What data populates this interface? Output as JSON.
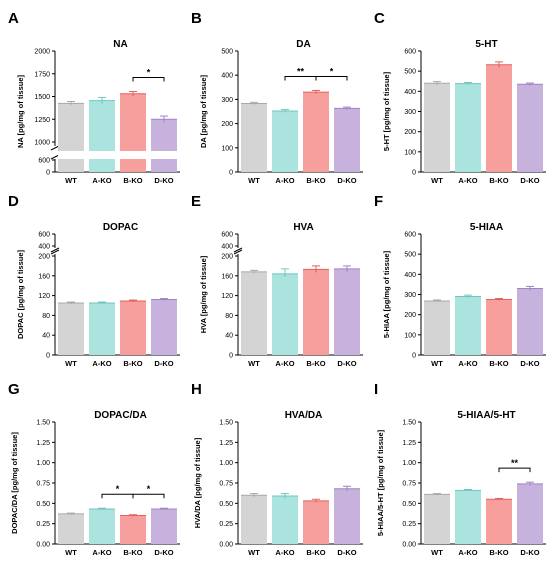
{
  "chart_data": [
    {
      "panel": "A",
      "type": "bar",
      "title": "NA",
      "ylabel": "NA [pg/mg of tissue]",
      "categories": [
        "WT",
        "A-KO",
        "B-KO",
        "D-KO"
      ],
      "values": [
        1425,
        1455,
        1530,
        1250
      ],
      "errors": [
        20,
        35,
        25,
        35
      ],
      "y_axis_break": true,
      "ylim_lower": [
        0,
        600
      ],
      "ylim_upper": [
        1000,
        2000
      ],
      "yticks_lower": [
        "0",
        "600"
      ],
      "yticks_upper": [
        "1000",
        "1250",
        "1500",
        "1750",
        "2000"
      ],
      "significance": [
        {
          "from": "B-KO",
          "to": "D-KO",
          "label": "*"
        }
      ]
    },
    {
      "panel": "B",
      "type": "bar",
      "title": "DA",
      "ylabel": "DA [pg/mg of tissue]",
      "categories": [
        "WT",
        "A-KO",
        "B-KO",
        "D-KO"
      ],
      "values": [
        283,
        252,
        330,
        263
      ],
      "errors": [
        5,
        6,
        7,
        5
      ],
      "ylim": [
        0,
        500
      ],
      "yticks": [
        "0",
        "100",
        "200",
        "300",
        "400",
        "500"
      ],
      "significance": [
        {
          "from": "A-KO",
          "to": "B-KO",
          "label": "**"
        },
        {
          "from": "B-KO",
          "to": "D-KO",
          "label": "*"
        }
      ]
    },
    {
      "panel": "C",
      "type": "bar",
      "title": "5-HT",
      "ylabel": "5-HT [pg/mg of tissue]",
      "categories": [
        "WT",
        "A-KO",
        "B-KO",
        "D-KO"
      ],
      "values": [
        440,
        438,
        532,
        435
      ],
      "errors": [
        8,
        6,
        14,
        6
      ],
      "ylim": [
        0,
        600
      ],
      "yticks": [
        "0",
        "100",
        "200",
        "300",
        "400",
        "500",
        "600"
      ],
      "significance": []
    },
    {
      "panel": "D",
      "type": "bar",
      "title": "DOPAC",
      "ylabel": "DOPAC [pg/mg of tissue]",
      "categories": [
        "WT",
        "A-KO",
        "B-KO",
        "D-KO"
      ],
      "values": [
        105,
        105,
        109,
        112
      ],
      "errors": [
        2,
        2,
        2,
        2
      ],
      "y_axis_break": true,
      "ylim": [
        0,
        200
      ],
      "yticks": [
        "0",
        "40",
        "80",
        "120",
        "160",
        "200"
      ],
      "yticks_above_break": [
        "400",
        "600"
      ],
      "significance": []
    },
    {
      "panel": "E",
      "type": "bar",
      "title": "HVA",
      "ylabel": "HVA [pg/mg of tissue]",
      "categories": [
        "WT",
        "A-KO",
        "B-KO",
        "D-KO"
      ],
      "values": [
        168,
        164,
        173,
        174
      ],
      "errors": [
        3,
        10,
        7,
        6
      ],
      "y_axis_break": true,
      "ylim": [
        0,
        200
      ],
      "yticks": [
        "0",
        "40",
        "80",
        "120",
        "160",
        "200"
      ],
      "yticks_above_break": [
        "400",
        "600"
      ],
      "significance": []
    },
    {
      "panel": "F",
      "type": "bar",
      "title": "5-HIAA",
      "ylabel": "5-HIAA [pg/mg of tissue]",
      "categories": [
        "WT",
        "A-KO",
        "B-KO",
        "D-KO"
      ],
      "values": [
        268,
        290,
        275,
        330
      ],
      "errors": [
        5,
        7,
        5,
        10
      ],
      "ylim": [
        0,
        600
      ],
      "yticks": [
        "0",
        "100",
        "200",
        "300",
        "400",
        "500",
        "600"
      ],
      "significance": []
    },
    {
      "panel": "G",
      "type": "bar",
      "title": "DOPAC/DA",
      "ylabel": "DOPAC/DA [pg/mg of tissue]",
      "categories": [
        "WT",
        "A-KO",
        "B-KO",
        "D-KO"
      ],
      "values": [
        0.37,
        0.43,
        0.35,
        0.43
      ],
      "errors": [
        0.01,
        0.01,
        0.01,
        0.01
      ],
      "ylim": [
        0,
        1.5
      ],
      "yticks": [
        "0.00",
        "0.25",
        "0.50",
        "0.75",
        "1.00",
        "1.25",
        "1.50"
      ],
      "significance": [
        {
          "from": "A-KO",
          "to": "B-KO",
          "label": "*"
        },
        {
          "from": "B-KO",
          "to": "D-KO",
          "label": "*"
        }
      ]
    },
    {
      "panel": "H",
      "type": "bar",
      "title": "HVA/DA",
      "ylabel": "HVA/DA [pg/mg of tissue]",
      "categories": [
        "WT",
        "A-KO",
        "B-KO",
        "D-KO"
      ],
      "values": [
        0.6,
        0.59,
        0.53,
        0.68
      ],
      "errors": [
        0.02,
        0.03,
        0.02,
        0.03
      ],
      "ylim": [
        0,
        1.5
      ],
      "yticks": [
        "0.00",
        "0.25",
        "0.50",
        "0.75",
        "1.00",
        "1.25",
        "1.50"
      ],
      "significance": []
    },
    {
      "panel": "I",
      "type": "bar",
      "title": "5-HIAA/5-HT",
      "ylabel": "5-HIAA/5-HT [pg/mg of tissue]",
      "categories": [
        "WT",
        "A-KO",
        "B-KO",
        "D-KO"
      ],
      "values": [
        0.61,
        0.66,
        0.55,
        0.74
      ],
      "errors": [
        0.01,
        0.01,
        0.01,
        0.02
      ],
      "ylim": [
        0,
        1.5
      ],
      "yticks": [
        "0.00",
        "0.25",
        "0.50",
        "0.75",
        "1.00",
        "1.25",
        "1.50"
      ],
      "significance": [
        {
          "from": "B-KO",
          "to": "D-KO",
          "label": "**"
        }
      ]
    }
  ],
  "colors": {
    "WT": "#d4d4d4",
    "A-KO": "#abe3df",
    "B-KO": "#f79f9c",
    "D-KO": "#c6b2dc",
    "error_WT": "#a8a8a8",
    "error_A-KO": "#6fc6c0",
    "error_B-KO": "#e2625e",
    "error_D-KO": "#9f84c4"
  }
}
